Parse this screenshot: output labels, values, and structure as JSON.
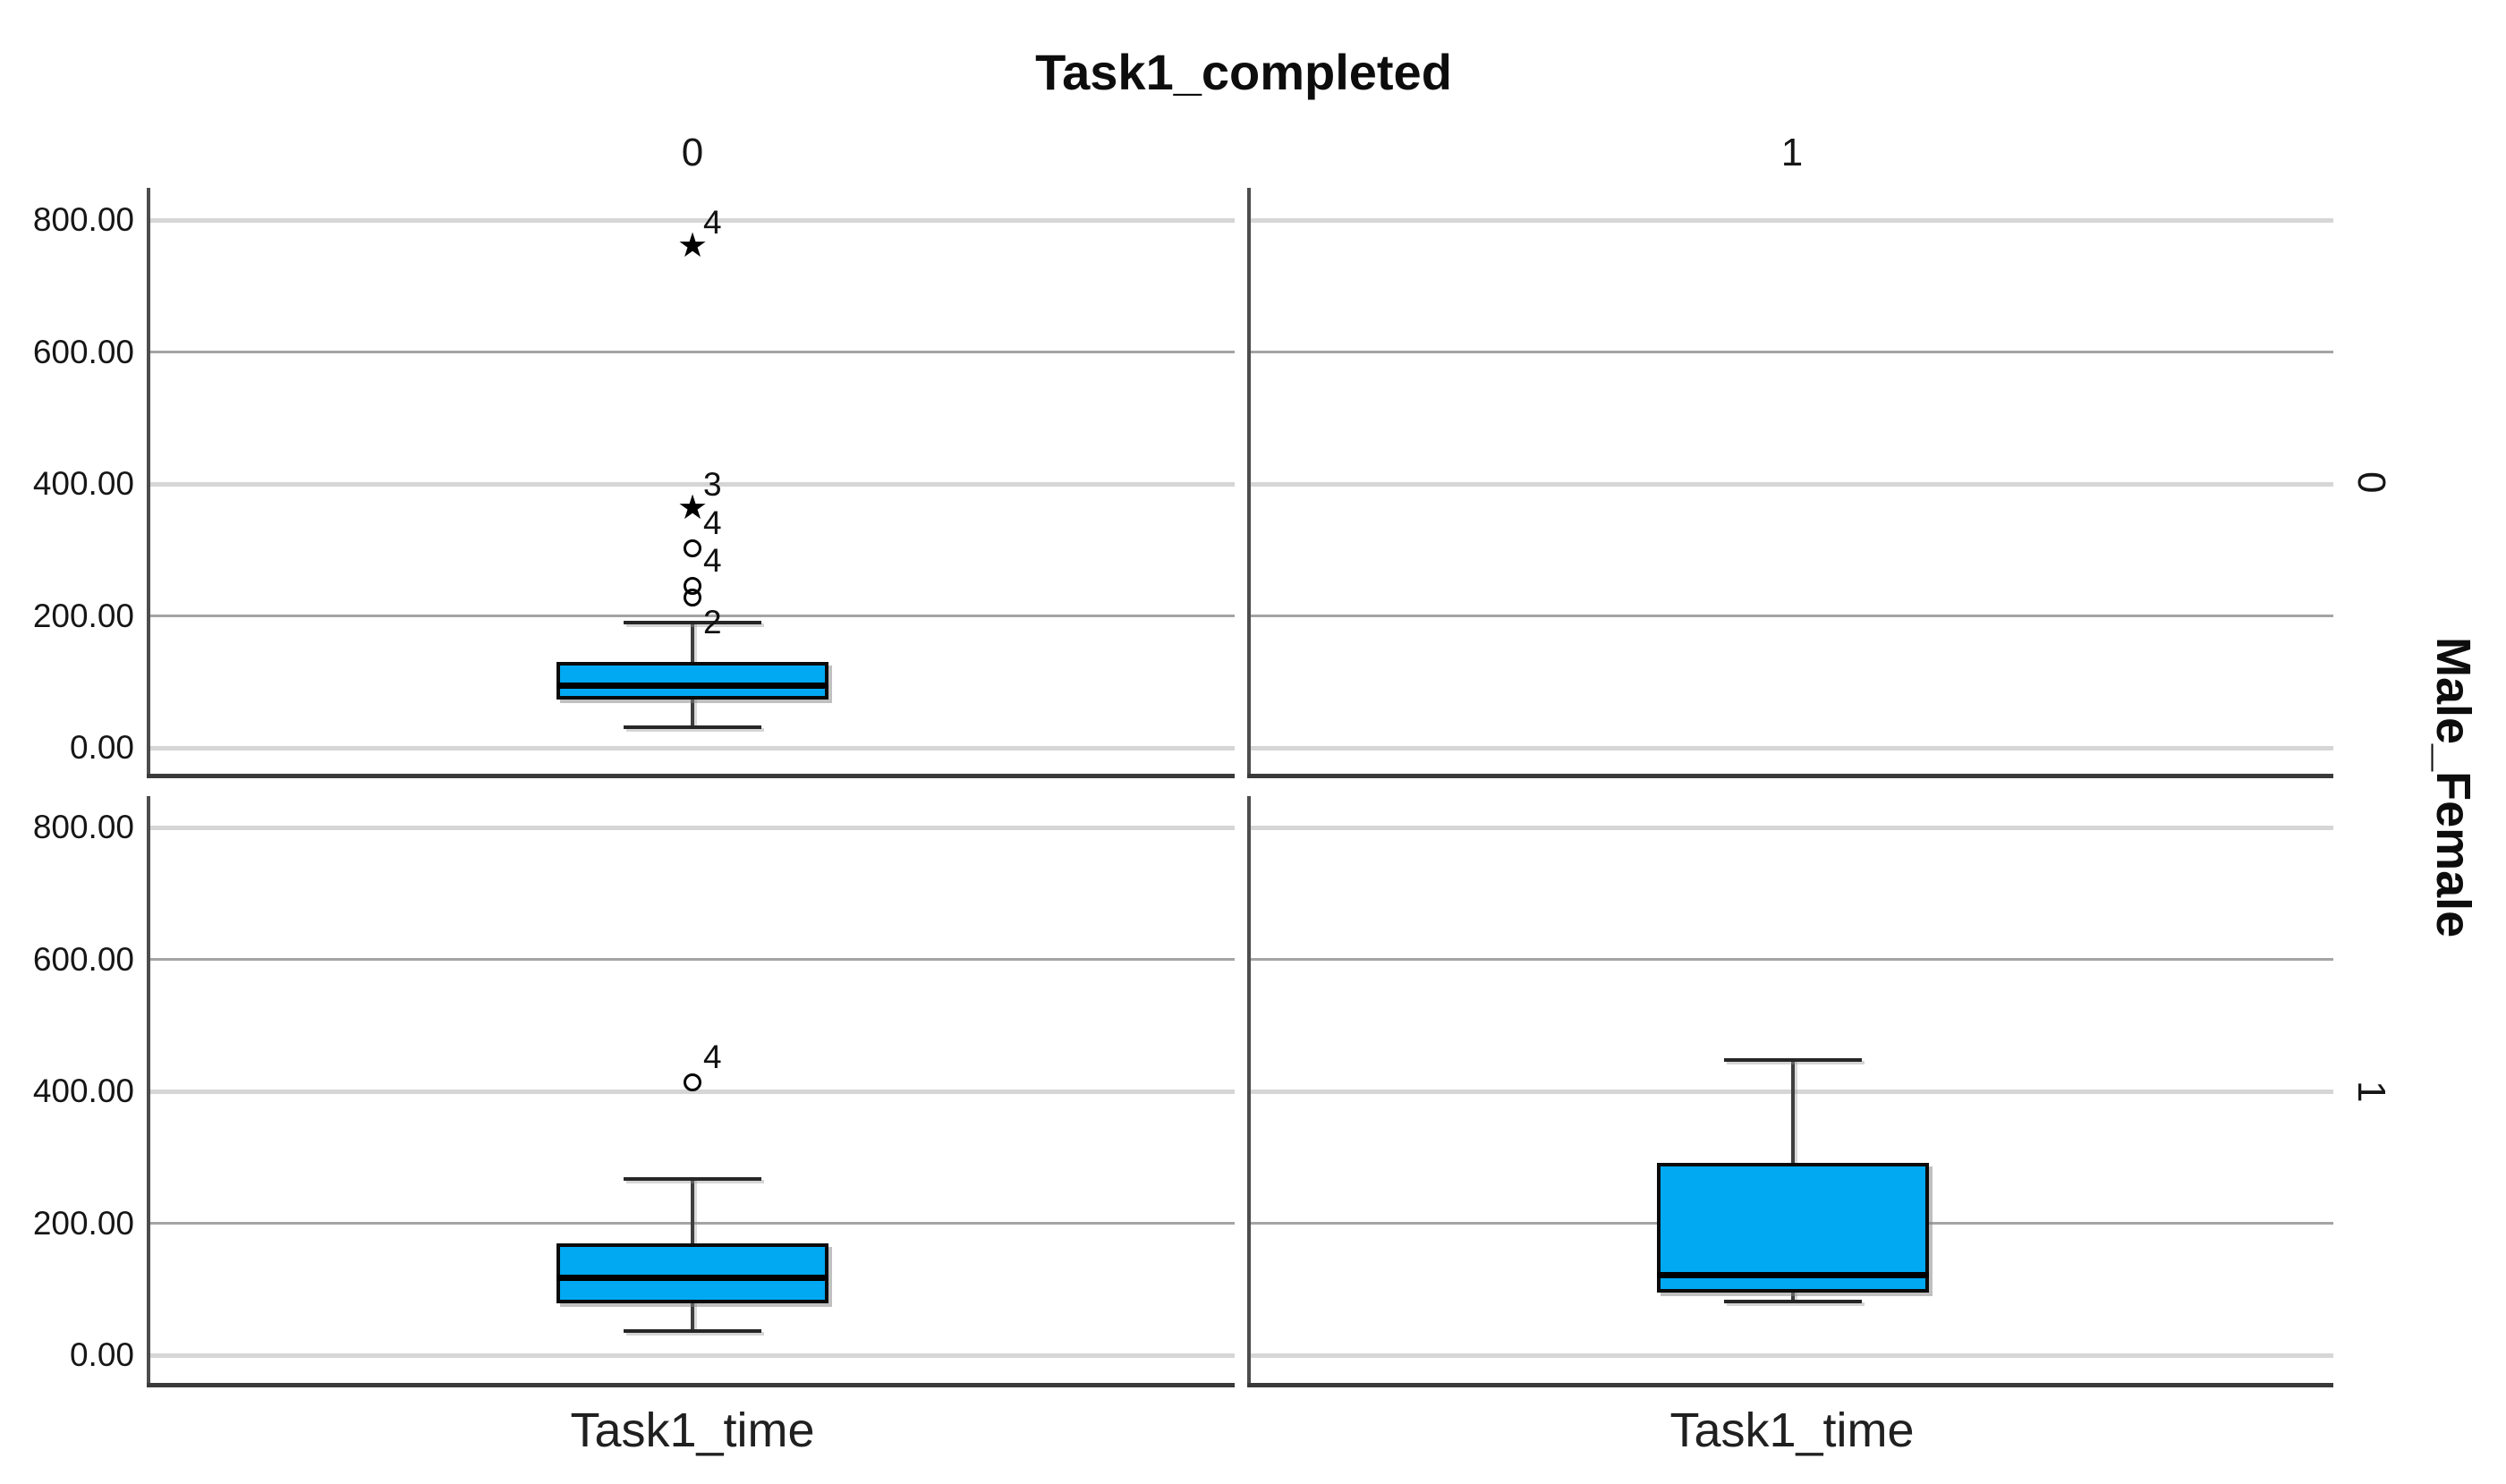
{
  "chart_data": {
    "type": "boxplot",
    "title": "Task1_completed",
    "facet": {
      "column_variable_values": [
        "0",
        "1"
      ],
      "row_variable_values": [
        "0",
        "1"
      ],
      "row_axis_title": "Male_Female"
    },
    "x_axis_label": "Task1_time",
    "y_ticks": [
      {
        "value": 800,
        "label": "800.00"
      },
      {
        "value": 600,
        "label": "600.00"
      },
      {
        "value": 400,
        "label": "400.00"
      },
      {
        "value": 200,
        "label": "200.00"
      },
      {
        "value": 0,
        "label": "0.00"
      }
    ],
    "ylim": [
      0,
      870
    ],
    "grid": true,
    "legend": "none",
    "panels": [
      {
        "column": "0",
        "row": "0",
        "box": {
          "whisker_low": 31,
          "q1": 73,
          "median": 95,
          "q3": 130,
          "whisker_high": 190
        },
        "outliers": [
          {
            "value": 758,
            "label": "4",
            "marker": "extreme"
          },
          {
            "value": 361,
            "label": "3",
            "marker": "extreme"
          },
          {
            "value": 302,
            "label": "4",
            "marker": "circle"
          },
          {
            "value": 245,
            "label": "4",
            "marker": "circle"
          },
          {
            "value": 228,
            "label": "2",
            "marker": "circle",
            "label_position": "below"
          }
        ]
      },
      {
        "column": "1",
        "row": "0",
        "box": null,
        "outliers": []
      },
      {
        "column": "0",
        "row": "1",
        "box": {
          "whisker_low": 37,
          "q1": 79,
          "median": 118,
          "q3": 169,
          "whisker_high": 267
        },
        "outliers": [
          {
            "value": 414,
            "label": "4",
            "marker": "circle"
          }
        ]
      },
      {
        "column": "1",
        "row": "1",
        "box": {
          "whisker_low": 81,
          "q1": 95,
          "median": 122,
          "q3": 292,
          "whisker_high": 447
        },
        "outliers": []
      }
    ],
    "colors": {
      "box_fill": "#00A9F2",
      "box_border": "#0b0b0b",
      "median": "#000000",
      "whisker": "#3f3f3f",
      "grid_major": "#d6d6d6",
      "grid_minor": "#a4a4a4",
      "axis": "#4d4d4d",
      "text": "#111111"
    }
  }
}
